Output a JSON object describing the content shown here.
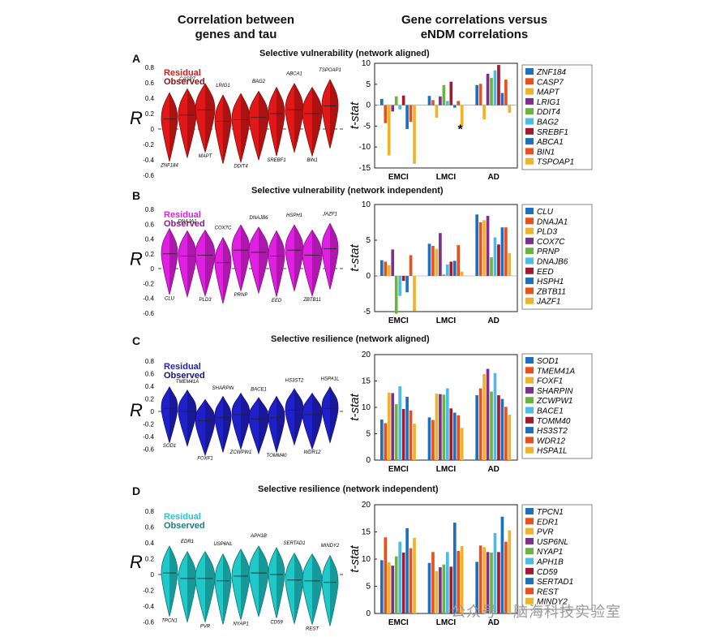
{
  "header": {
    "left_line1": "Correlation between",
    "left_line2": "genes and tau",
    "right_line1": "Gene correlations versus",
    "right_line2": "eNDM correlations"
  },
  "watermark": "公众号 · 脑海科技实验室",
  "chart_data": [
    {
      "letter": "A",
      "title": "Selective vulnerability (network aligned)",
      "color": "#e01818",
      "legend": {
        "residual": "Residual",
        "observed": "Observed"
      },
      "violin": {
        "type": "violin",
        "ylabel": "R",
        "ylim": [
          -0.7,
          0.9
        ],
        "yticks": [
          "0.8",
          "0.6",
          "0.4",
          "0.2",
          "0",
          "-0.2",
          "-0.4",
          "-0.6"
        ],
        "genes": [
          "ZNF184",
          "CASP7",
          "MAPT",
          "LRIG1",
          "DDIT4",
          "BAG2",
          "SREBF1",
          "ABCA1",
          "BIN1",
          "TSPOAP1"
        ],
        "centers": [
          0.13,
          0.18,
          0.25,
          0.1,
          0.12,
          0.15,
          0.2,
          0.25,
          0.2,
          0.3
        ]
      },
      "bar": {
        "type": "bar",
        "ylabel": "t-stat",
        "ylim": [
          -15,
          10
        ],
        "yticks": [
          10,
          5,
          0,
          -5,
          -10,
          -15
        ],
        "categories": [
          "EMCI",
          "LMCI",
          "AD"
        ],
        "annotation": "*",
        "legend_colors": [
          "#1f6fbf",
          "#e8511c",
          "#efb22a",
          "#7d2f8e",
          "#6db33f",
          "#4dbbe8",
          "#a3192e",
          "#1f6fbf",
          "#e8511c",
          "#efb22a"
        ],
        "series": [
          {
            "name": "ZNF184",
            "values": [
              1.5,
              2.2,
              4.8
            ]
          },
          {
            "name": "CASP7",
            "values": [
              -4.3,
              1.2,
              5.1
            ]
          },
          {
            "name": "MAPT",
            "values": [
              -12.0,
              -3.0,
              -3.4
            ]
          },
          {
            "name": "LRIG1",
            "values": [
              -1.5,
              2.1,
              7.5
            ]
          },
          {
            "name": "DDIT4",
            "values": [
              2.1,
              4.8,
              6.5
            ]
          },
          {
            "name": "BAG2",
            "values": [
              -1.0,
              1.0,
              8.3
            ]
          },
          {
            "name": "SREBF1",
            "values": [
              2.3,
              5.6,
              9.6
            ]
          },
          {
            "name": "ABCA1",
            "values": [
              -5.7,
              -0.6,
              2.9
            ]
          },
          {
            "name": "BIN1",
            "values": [
              -4.0,
              1.0,
              6.1
            ]
          },
          {
            "name": "TSPOAP1",
            "values": [
              -14.0,
              -5.0,
              -1.8
            ]
          }
        ]
      }
    },
    {
      "letter": "B",
      "title": "Selective vulnerability (network independent)",
      "color": "#e020e0",
      "legend": {
        "residual": "Residual",
        "observed": "Observed"
      },
      "violin": {
        "type": "violin",
        "ylabel": "R",
        "ylim": [
          -0.7,
          0.9
        ],
        "yticks": [
          "0.8",
          "0.6",
          "0.4",
          "0.2",
          "0",
          "-0.2",
          "-0.4",
          "-0.6"
        ],
        "genes": [
          "CLU",
          "DNAJA1",
          "PLD3",
          "COX7C",
          "PRNP",
          "DNAJB6",
          "EED",
          "HSPH1",
          "ZBTB11",
          "JAZF1"
        ],
        "centers": [
          0.2,
          0.17,
          0.18,
          0.08,
          0.25,
          0.22,
          0.17,
          0.25,
          0.18,
          0.27
        ]
      },
      "bar": {
        "type": "bar",
        "ylabel": "t-stat",
        "ylim": [
          -5,
          10
        ],
        "yticks": [
          10,
          5,
          0,
          -5
        ],
        "categories": [
          "EMCI",
          "LMCI",
          "AD"
        ],
        "annotation": "",
        "legend_colors": [
          "#1f6fbf",
          "#e8511c",
          "#efb22a",
          "#7d2f8e",
          "#6db33f",
          "#4dbbe8",
          "#a3192e",
          "#1f6fbf",
          "#e8511c",
          "#efb22a"
        ],
        "series": [
          {
            "name": "CLU",
            "values": [
              2.2,
              4.5,
              8.6
            ]
          },
          {
            "name": "DNAJA1",
            "values": [
              2.0,
              4.2,
              7.5
            ]
          },
          {
            "name": "PLD3",
            "values": [
              1.5,
              3.8,
              7.8
            ]
          },
          {
            "name": "COX7C",
            "values": [
              3.7,
              6.0,
              8.4
            ]
          },
          {
            "name": "PRNP",
            "values": [
              -5.3,
              0.2,
              2.6
            ]
          },
          {
            "name": "DNAJB6",
            "values": [
              -2.8,
              1.6,
              5.4
            ]
          },
          {
            "name": "EED",
            "values": [
              -0.7,
              2.0,
              4.4
            ]
          },
          {
            "name": "HSPH1",
            "values": [
              -2.3,
              2.1,
              6.8
            ]
          },
          {
            "name": "ZBTB11",
            "values": [
              2.9,
              4.3,
              6.8
            ]
          },
          {
            "name": "JAZF1",
            "values": [
              -4.9,
              0.6,
              3.2
            ]
          }
        ]
      }
    },
    {
      "letter": "C",
      "title": "Selective resilience (network aligned)",
      "color": "#2020c8",
      "legend": {
        "residual": "Residual",
        "observed": "Observed"
      },
      "violin": {
        "type": "violin",
        "ylabel": "R",
        "ylim": [
          -0.7,
          0.9
        ],
        "yticks": [
          "0.8",
          "0.6",
          "0.4",
          "0.2",
          "0",
          "-0.2",
          "-0.4",
          "-0.6"
        ],
        "genes": [
          "SOD1",
          "TMEM41A",
          "FOXF1",
          "SHARPIN",
          "ZCWPW1",
          "BACE1",
          "TOMM40",
          "HS3ST2",
          "WDR12",
          "HSPA1L"
        ],
        "centers": [
          0.05,
          0.0,
          -0.15,
          -0.1,
          -0.05,
          -0.12,
          -0.1,
          0.02,
          -0.05,
          0.05
        ]
      },
      "bar": {
        "type": "bar",
        "ylabel": "t-stat",
        "ylim": [
          0,
          20
        ],
        "yticks": [
          20,
          15,
          10,
          5,
          0
        ],
        "categories": [
          "EMCI",
          "LMCI",
          "AD"
        ],
        "annotation": "",
        "legend_colors": [
          "#1f6fbf",
          "#e8511c",
          "#efb22a",
          "#7d2f8e",
          "#6db33f",
          "#4dbbe8",
          "#a3192e",
          "#1f6fbf",
          "#e8511c",
          "#efb22a"
        ],
        "series": [
          {
            "name": "SOD1",
            "values": [
              7.7,
              8.1,
              12.3
            ]
          },
          {
            "name": "TMEM41A",
            "values": [
              7.0,
              7.6,
              13.6
            ]
          },
          {
            "name": "FOXF1",
            "values": [
              12.8,
              12.6,
              16.3
            ]
          },
          {
            "name": "SHARPIN",
            "values": [
              12.7,
              12.5,
              17.3
            ]
          },
          {
            "name": "ZCWPW1",
            "values": [
              10.6,
              12.4,
              13.0
            ]
          },
          {
            "name": "BACE1",
            "values": [
              14.0,
              13.6,
              16.5
            ]
          },
          {
            "name": "TOMM40",
            "values": [
              9.7,
              9.8,
              12.3
            ]
          },
          {
            "name": "HS3ST2",
            "values": [
              12.0,
              9.0,
              11.6
            ]
          },
          {
            "name": "WDR12",
            "values": [
              9.4,
              8.5,
              10.1
            ]
          },
          {
            "name": "HSPA1L",
            "values": [
              6.9,
              6.1,
              8.6
            ]
          }
        ]
      }
    },
    {
      "letter": "D",
      "title": "Selective resilience (network independent)",
      "color": "#20c8c8",
      "legend": {
        "residual": "Residual",
        "observed": "Observed"
      },
      "violin": {
        "type": "violin",
        "ylabel": "R",
        "ylim": [
          -0.7,
          0.9
        ],
        "yticks": [
          "0.8",
          "0.6",
          "0.4",
          "0.2",
          "0",
          "-0.2",
          "-0.4",
          "-0.6"
        ],
        "genes": [
          "TPCN1",
          "EDR1",
          "PVR",
          "USP6NL",
          "NYAP1",
          "APH1B",
          "CD59",
          "SERTAD1",
          "REST",
          "MINDY2"
        ],
        "centers": [
          0.02,
          -0.05,
          -0.05,
          -0.08,
          -0.02,
          0.02,
          0.0,
          -0.07,
          -0.08,
          -0.1
        ]
      },
      "bar": {
        "type": "bar",
        "ylabel": "t-stat",
        "ylim": [
          0,
          20
        ],
        "yticks": [
          20,
          15,
          10,
          5,
          0
        ],
        "categories": [
          "EMCI",
          "LMCI",
          "AD"
        ],
        "annotation": "",
        "legend_colors": [
          "#1f6fbf",
          "#e8511c",
          "#efb22a",
          "#7d2f8e",
          "#6db33f",
          "#4dbbe8",
          "#a3192e",
          "#1f6fbf",
          "#e8511c",
          "#efb22a"
        ],
        "series": [
          {
            "name": "TPCN1",
            "values": [
              9.8,
              9.3,
              9.5
            ]
          },
          {
            "name": "EDR1",
            "values": [
              14.0,
              11.3,
              12.5
            ]
          },
          {
            "name": "PVR",
            "values": [
              9.4,
              7.8,
              12.2
            ]
          },
          {
            "name": "USP6NL",
            "values": [
              8.8,
              8.5,
              11.3
            ]
          },
          {
            "name": "NYAP1",
            "values": [
              10.5,
              9.0,
              11.2
            ]
          },
          {
            "name": "APH1B",
            "values": [
              13.2,
              11.3,
              14.8
            ]
          },
          {
            "name": "CD59",
            "values": [
              11.2,
              8.6,
              11.3
            ]
          },
          {
            "name": "SERTAD1",
            "values": [
              15.7,
              16.7,
              17.8
            ]
          },
          {
            "name": "REST",
            "values": [
              12.0,
              11.5,
              13.2
            ]
          },
          {
            "name": "MINDY2",
            "values": [
              13.9,
              12.4,
              15.3
            ]
          }
        ]
      }
    }
  ]
}
